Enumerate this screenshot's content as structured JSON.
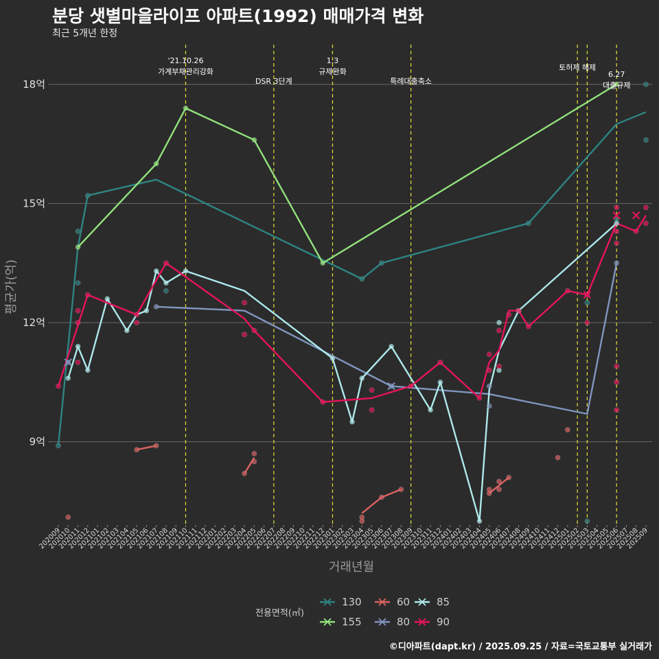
{
  "title": "분당 샛별마을라이프 아파트(1992) 매매가격 변화",
  "subtitle": "최근 5개년 한정",
  "footer": "©디아파트(dapt.kr) / 2025.09.25 / 자료=국토교통부 실거래가",
  "chart_data": {
    "type": "line",
    "xlabel": "거래년월",
    "ylabel": "평균가(억)",
    "x_range": [
      "2020-09",
      "2025-09"
    ],
    "ylim": [
      6.9,
      19.0
    ],
    "yticks": [
      9,
      12,
      15,
      18
    ],
    "ytick_labels": [
      "9억",
      "12억",
      "15억",
      "18억"
    ],
    "grid": true,
    "legend": {
      "title": "전용면적(㎡)",
      "position": "bottom",
      "entries": [
        "130",
        "155",
        "60",
        "80",
        "85",
        "90"
      ]
    },
    "colors": {
      "130": "#2e8583",
      "155": "#93e27d",
      "60": "#dc6262",
      "80": "#8095bf",
      "85": "#aee9eb",
      "90": "#e8145a",
      "vline": "#e5e03a"
    },
    "events": [
      {
        "date": "2021-10",
        "label": "'21.10.26\n가계부채관리강화",
        "row": 1
      },
      {
        "date": "2022-07",
        "label": "DSR 3단계",
        "row": 2
      },
      {
        "date": "2023-01",
        "label": "1.3\n규제완화",
        "row": 1
      },
      {
        "date": "2023-09",
        "label": "특례대출축소",
        "row": 2
      },
      {
        "date": "2025-02",
        "label": "토허제 해제",
        "row": 0
      },
      {
        "date": "2025-03",
        "label": "",
        "row": 0
      },
      {
        "date": "2025-06",
        "label": "6.27\n대출규제",
        "row": 1
      }
    ],
    "series": [
      {
        "name": "130",
        "points": [
          [
            "2020-09",
            8.9
          ],
          [
            "2020-11",
            13.9
          ],
          [
            "2020-12",
            15.2
          ],
          [
            "2021-07",
            15.6
          ],
          [
            "2023-04",
            13.1
          ],
          [
            "2023-06",
            13.5
          ],
          [
            "2024-09",
            14.5
          ],
          [
            "2025-06",
            17.0
          ],
          [
            "2025-09",
            17.3
          ]
        ]
      },
      {
        "name": "155",
        "points": [
          [
            "2020-11",
            13.9
          ],
          [
            "2021-07",
            16.0
          ],
          [
            "2021-10",
            17.4
          ],
          [
            "2022-05",
            16.6
          ],
          [
            "2022-12",
            13.5
          ],
          [
            "2025-06",
            18.0
          ]
        ]
      },
      {
        "name": "60",
        "segments": [
          [
            [
              "2021-05",
              8.8
            ],
            [
              "2021-07",
              8.9
            ]
          ],
          [
            [
              "2022-04",
              8.2
            ],
            [
              "2022-05",
              8.6
            ]
          ],
          [
            [
              "2023-04",
              7.2
            ],
            [
              "2023-06",
              7.6
            ],
            [
              "2023-08",
              7.8
            ]
          ],
          [
            [
              "2024-05",
              7.7
            ],
            [
              "2024-06",
              7.9
            ],
            [
              "2024-07",
              8.1
            ]
          ]
        ]
      },
      {
        "name": "80",
        "points": [
          [
            "2021-07",
            12.4
          ],
          [
            "2022-04",
            12.3
          ],
          [
            "2023-07",
            10.4
          ],
          [
            "2024-05",
            10.2
          ],
          [
            "2025-03",
            9.7
          ],
          [
            "2025-06",
            13.5
          ]
        ]
      },
      {
        "name": "85",
        "points": [
          [
            "2020-10",
            10.6
          ],
          [
            "2020-11",
            11.4
          ],
          [
            "2020-12",
            10.8
          ],
          [
            "2021-02",
            12.6
          ],
          [
            "2021-04",
            11.8
          ],
          [
            "2021-05",
            12.2
          ],
          [
            "2021-06",
            12.3
          ],
          [
            "2021-07",
            13.3
          ],
          [
            "2021-08",
            13.0
          ],
          [
            "2021-10",
            13.3
          ],
          [
            "2022-04",
            12.8
          ],
          [
            "2023-01",
            11.1
          ],
          [
            "2023-03",
            9.5
          ],
          [
            "2023-04",
            10.6
          ],
          [
            "2023-07",
            11.4
          ],
          [
            "2023-11",
            9.8
          ],
          [
            "2023-12",
            10.5
          ],
          [
            "2024-04",
            7.0
          ],
          [
            "2024-05",
            10.3
          ],
          [
            "2024-06",
            11.3
          ],
          [
            "2024-08",
            12.3
          ],
          [
            "2025-06",
            14.5
          ]
        ]
      },
      {
        "name": "90",
        "points": [
          [
            "2020-09",
            10.4
          ],
          [
            "2020-12",
            12.7
          ],
          [
            "2021-05",
            12.2
          ],
          [
            "2021-08",
            13.5
          ],
          [
            "2022-04",
            12.1
          ],
          [
            "2022-05",
            11.8
          ],
          [
            "2022-12",
            10.0
          ],
          [
            "2023-05",
            10.1
          ],
          [
            "2023-09",
            10.4
          ],
          [
            "2023-12",
            11.0
          ],
          [
            "2024-04",
            10.1
          ],
          [
            "2024-05",
            11.0
          ],
          [
            "2024-06",
            11.3
          ],
          [
            "2024-07",
            12.3
          ],
          [
            "2024-08",
            12.3
          ],
          [
            "2024-09",
            11.9
          ],
          [
            "2025-01",
            12.8
          ],
          [
            "2025-03",
            12.7
          ],
          [
            "2025-06",
            14.5
          ],
          [
            "2025-08",
            14.3
          ],
          [
            "2025-09",
            14.7
          ]
        ]
      }
    ],
    "scatter": [
      {
        "name": "130",
        "points": [
          [
            "2020-09",
            8.9
          ],
          [
            "2020-11",
            14.3
          ],
          [
            "2020-11",
            13.0
          ],
          [
            "2020-12",
            15.2
          ],
          [
            "2021-08",
            12.8
          ],
          [
            "2023-04",
            13.1
          ],
          [
            "2023-06",
            13.5
          ],
          [
            "2024-09",
            14.5
          ],
          [
            "2025-03",
            12.5
          ],
          [
            "2025-03",
            7.0
          ],
          [
            "2025-06",
            14.6
          ],
          [
            "2025-09",
            18.0
          ],
          [
            "2025-09",
            16.6
          ]
        ]
      },
      {
        "name": "155",
        "points": [
          [
            "2020-11",
            13.9
          ],
          [
            "2021-07",
            16.0
          ],
          [
            "2021-10",
            17.4
          ],
          [
            "2022-05",
            16.6
          ],
          [
            "2022-12",
            13.5
          ],
          [
            "2025-06",
            18.0
          ]
        ]
      },
      {
        "name": "60",
        "points": [
          [
            "2020-10",
            7.1
          ],
          [
            "2021-05",
            8.8
          ],
          [
            "2021-07",
            8.9
          ],
          [
            "2022-04",
            8.2
          ],
          [
            "2022-05",
            8.5
          ],
          [
            "2022-05",
            8.7
          ],
          [
            "2023-04",
            7.1
          ],
          [
            "2023-04",
            7.0
          ],
          [
            "2023-06",
            7.6
          ],
          [
            "2023-08",
            7.8
          ],
          [
            "2024-05",
            7.7
          ],
          [
            "2024-05",
            7.8
          ],
          [
            "2024-06",
            8.0
          ],
          [
            "2024-06",
            7.8
          ],
          [
            "2024-07",
            8.1
          ],
          [
            "2024-12",
            8.6
          ],
          [
            "2025-01",
            9.3
          ]
        ]
      },
      {
        "name": "80",
        "points": [
          [
            "2020-10",
            11.0
          ],
          [
            "2021-07",
            12.4
          ],
          [
            "2023-07",
            10.4
          ],
          [
            "2024-05",
            9.9
          ],
          [
            "2024-05",
            10.4
          ],
          [
            "2025-06",
            13.5
          ]
        ]
      },
      {
        "name": "85",
        "points": [
          [
            "2020-10",
            10.6
          ],
          [
            "2020-11",
            11.4
          ],
          [
            "2020-12",
            10.8
          ],
          [
            "2021-02",
            12.6
          ],
          [
            "2021-04",
            11.8
          ],
          [
            "2021-06",
            12.3
          ],
          [
            "2021-07",
            13.3
          ],
          [
            "2021-08",
            13.0
          ],
          [
            "2021-10",
            13.3
          ],
          [
            "2023-01",
            11.1
          ],
          [
            "2023-03",
            9.5
          ],
          [
            "2023-04",
            10.6
          ],
          [
            "2023-07",
            11.4
          ],
          [
            "2023-11",
            9.8
          ],
          [
            "2023-12",
            10.5
          ],
          [
            "2024-04",
            7.0
          ],
          [
            "2024-06",
            10.8
          ],
          [
            "2024-06",
            12.0
          ],
          [
            "2024-08",
            12.3
          ],
          [
            "2025-06",
            14.5
          ]
        ]
      },
      {
        "name": "90",
        "points": [
          [
            "2020-09",
            10.4
          ],
          [
            "2020-11",
            12.3
          ],
          [
            "2020-11",
            12.0
          ],
          [
            "2020-11",
            11.0
          ],
          [
            "2020-12",
            12.7
          ],
          [
            "2021-05",
            12.0
          ],
          [
            "2021-05",
            12.2
          ],
          [
            "2021-08",
            13.5
          ],
          [
            "2022-04",
            12.5
          ],
          [
            "2022-04",
            11.7
          ],
          [
            "2022-05",
            11.8
          ],
          [
            "2022-12",
            10.0
          ],
          [
            "2023-05",
            10.3
          ],
          [
            "2023-05",
            9.8
          ],
          [
            "2023-09",
            10.4
          ],
          [
            "2023-12",
            11.0
          ],
          [
            "2024-04",
            10.1
          ],
          [
            "2024-05",
            11.2
          ],
          [
            "2024-05",
            10.8
          ],
          [
            "2024-06",
            11.8
          ],
          [
            "2024-06",
            10.9
          ],
          [
            "2024-07",
            12.2
          ],
          [
            "2024-08",
            12.3
          ],
          [
            "2024-09",
            11.9
          ],
          [
            "2025-01",
            12.8
          ],
          [
            "2025-03",
            12.0
          ],
          [
            "2025-03",
            12.7
          ],
          [
            "2025-06",
            14.9
          ],
          [
            "2025-06",
            14.0
          ],
          [
            "2025-06",
            10.5
          ],
          [
            "2025-06",
            9.8
          ],
          [
            "2025-06",
            10.9
          ],
          [
            "2025-06",
            14.3
          ],
          [
            "2025-08",
            14.3
          ],
          [
            "2025-09",
            14.9
          ],
          [
            "2025-09",
            14.5
          ]
        ]
      }
    ],
    "x_markers": [
      {
        "name": "90",
        "date": "2025-03",
        "value": 12.7
      },
      {
        "name": "90",
        "date": "2025-06",
        "value": 14.7
      },
      {
        "name": "90",
        "date": "2025-08",
        "value": 14.7
      },
      {
        "name": "80",
        "date": "2020-10",
        "value": 11.0
      },
      {
        "name": "80",
        "date": "2023-07",
        "value": 10.4
      }
    ]
  }
}
